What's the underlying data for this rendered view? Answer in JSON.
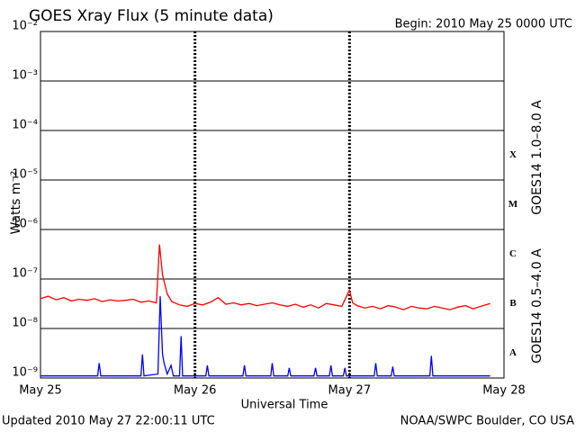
{
  "chart_data": {
    "type": "line",
    "title": "GOES Xray Flux (5 minute data)",
    "subtitle": "Begin:  2010 May 25 0000 UTC",
    "y_label": "Watts m⁻²",
    "x_label": "Universal Time",
    "footer_left": "Updated 2010 May 27 22:00:11 UTC",
    "footer_right": "NOAA/SWPC Boulder, CO USA",
    "log_scale": true,
    "grid": true,
    "xlim": [
      0,
      3
    ],
    "xticks": [
      {
        "value": 0,
        "label": "May 25"
      },
      {
        "value": 1,
        "label": "May 26"
      },
      {
        "value": 2,
        "label": "May 27"
      },
      {
        "value": 3,
        "label": "May 28"
      }
    ],
    "ylim": [
      1e-09,
      0.01
    ],
    "yticks": [
      {
        "value": 1e-09,
        "label": "10⁻⁹"
      },
      {
        "value": 1e-08,
        "label": "10⁻⁸"
      },
      {
        "value": 1e-07,
        "label": "10⁻⁷"
      },
      {
        "value": 1e-06,
        "label": "10⁻⁶"
      },
      {
        "value": 1e-05,
        "label": "10⁻⁵"
      },
      {
        "value": 0.0001,
        "label": "10⁻⁴"
      },
      {
        "value": 0.001,
        "label": "10⁻³"
      },
      {
        "value": 0.01,
        "label": "10⁻²"
      }
    ],
    "flare_classes": [
      "X",
      "M",
      "C",
      "B",
      "A"
    ],
    "series": [
      {
        "name": "GOES14 1.0–8.0 A",
        "color": "#ff0000",
        "x": [
          0,
          0.05,
          0.1,
          0.15,
          0.2,
          0.25,
          0.3,
          0.35,
          0.4,
          0.45,
          0.5,
          0.55,
          0.6,
          0.65,
          0.7,
          0.75,
          0.77,
          0.79,
          0.82,
          0.85,
          0.9,
          0.95,
          1,
          1.05,
          1.1,
          1.15,
          1.2,
          1.25,
          1.3,
          1.35,
          1.4,
          1.45,
          1.5,
          1.55,
          1.6,
          1.65,
          1.7,
          1.75,
          1.8,
          1.85,
          1.9,
          1.95,
          2,
          2.02,
          2.05,
          2.1,
          2.15,
          2.2,
          2.25,
          2.3,
          2.35,
          2.4,
          2.45,
          2.5,
          2.55,
          2.6,
          2.65,
          2.7,
          2.75,
          2.8,
          2.85,
          2.91
        ],
        "values": [
          4e-08,
          4.5e-08,
          3.8e-08,
          4.2e-08,
          3.6e-08,
          3.9e-08,
          3.7e-08,
          4e-08,
          3.5e-08,
          3.8e-08,
          3.6e-08,
          3.7e-08,
          3.9e-08,
          3.4e-08,
          3.6e-08,
          3.3e-08,
          5e-07,
          1.2e-07,
          5e-08,
          3.5e-08,
          3e-08,
          2.8e-08,
          3.2e-08,
          3e-08,
          3.4e-08,
          4.2e-08,
          3.1e-08,
          3.3e-08,
          3e-08,
          3.2e-08,
          2.9e-08,
          3.1e-08,
          3.3e-08,
          3e-08,
          2.8e-08,
          3.1e-08,
          2.7e-08,
          3e-08,
          2.6e-08,
          3.2e-08,
          3e-08,
          2.8e-08,
          6e-08,
          3.3e-08,
          2.9e-08,
          2.6e-08,
          2.8e-08,
          2.5e-08,
          2.9e-08,
          2.7e-08,
          2.4e-08,
          2.8e-08,
          2.6e-08,
          2.5e-08,
          2.8e-08,
          2.6e-08,
          2.4e-08,
          2.7e-08,
          2.9e-08,
          2.5e-08,
          2.8e-08,
          3.2e-08
        ]
      },
      {
        "name": "GOES14 0.5–4.0 A",
        "color": "#0000ff",
        "x": [
          0,
          0.37,
          0.38,
          0.39,
          0.65,
          0.66,
          0.67,
          0.76,
          0.775,
          0.79,
          0.8,
          0.82,
          0.845,
          0.86,
          0.9,
          0.91,
          0.92,
          1.07,
          1.08,
          1.09,
          1.31,
          1.32,
          1.33,
          1.49,
          1.5,
          1.51,
          1.6,
          1.61,
          1.62,
          1.77,
          1.78,
          1.79,
          1.87,
          1.88,
          1.89,
          1.96,
          1.97,
          1.98,
          2.16,
          2.17,
          2.18,
          2.27,
          2.28,
          2.29,
          2.52,
          2.53,
          2.54,
          2.91
        ],
        "values": [
          1.1e-09,
          1.1e-09,
          2e-09,
          1.1e-09,
          1.1e-09,
          3e-09,
          1.1e-09,
          1.2e-09,
          4.5e-08,
          3e-09,
          2e-09,
          1.2e-09,
          1.8e-09,
          1.1e-09,
          1.1e-09,
          7e-09,
          1.1e-09,
          1.1e-09,
          1.8e-09,
          1.1e-09,
          1.1e-09,
          1.8e-09,
          1.1e-09,
          1.1e-09,
          2e-09,
          1.1e-09,
          1.1e-09,
          1.6e-09,
          1.1e-09,
          1.1e-09,
          1.6e-09,
          1.1e-09,
          1.1e-09,
          1.8e-09,
          1.1e-09,
          1.1e-09,
          1.6e-09,
          1.1e-09,
          1.1e-09,
          2e-09,
          1.1e-09,
          1.1e-09,
          1.7e-09,
          1.1e-09,
          1.1e-09,
          2.8e-09,
          1.1e-09,
          1.1e-09
        ]
      }
    ]
  }
}
